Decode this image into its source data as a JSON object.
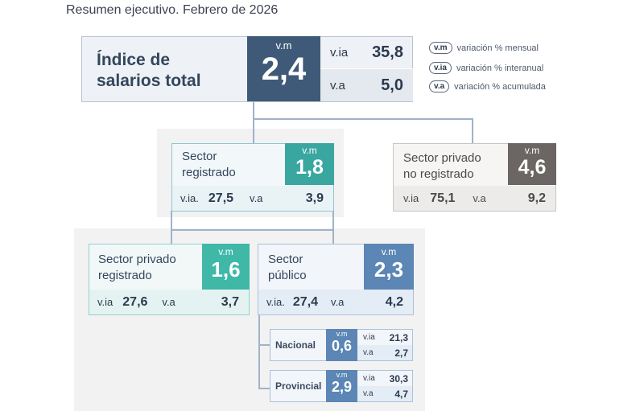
{
  "subtitle": "Resumen ejecutivo. Febrero de 2026",
  "legend": [
    {
      "abbr": "v.m",
      "text": "variación % mensual"
    },
    {
      "abbr": "v.ia",
      "text": "variación % interanual"
    },
    {
      "abbr": "v.a",
      "text": "variación % acumulada"
    }
  ],
  "total": {
    "name_line1": "Índice de",
    "name_line2": "salarios total",
    "vm_label": "v.m",
    "vm": "2,4",
    "via_label": "v.ia",
    "via": "35,8",
    "va_label": "v.a",
    "va": "5,0"
  },
  "registrado": {
    "name_line1": "Sector",
    "name_line2": "registrado",
    "vm_label": "v.m",
    "vm": "1,8",
    "via_label": "v.ia.",
    "via": "27,5",
    "va_label": "v.a",
    "va": "3,9"
  },
  "no_registrado": {
    "name_line1": "Sector privado",
    "name_line2": "no registrado",
    "vm_label": "v.m",
    "vm": "4,6",
    "via_label": "v.ia",
    "via": "75,1",
    "va_label": "v.a",
    "va": "9,2"
  },
  "privado_registrado": {
    "name_line1": "Sector privado",
    "name_line2": "registrado",
    "vm_label": "v.m",
    "vm": "1,6",
    "via_label": "v.ia",
    "via": "27,6",
    "va_label": "v.a",
    "va": "3,7"
  },
  "publico": {
    "name_line1": "Sector",
    "name_line2": "público",
    "vm_label": "v.m",
    "vm": "2,3",
    "via_label": "v.ia.",
    "via": "27,4",
    "va_label": "v.a",
    "va": "4,2"
  },
  "nacional": {
    "name": "Nacional",
    "vm_label": "v.m",
    "vm": "0,6",
    "via_label": "v.ia",
    "via": "21,3",
    "va_label": "v.a",
    "va": "2,7"
  },
  "provincial": {
    "name": "Provincial",
    "vm_label": "v.m",
    "vm": "2,9",
    "via_label": "v.ia",
    "via": "30,3",
    "va_label": "v.a",
    "va": "4,7"
  },
  "colors": {
    "total": "#3e5a78",
    "registrado": "#3aa6a0",
    "no_registrado": "#6b6663",
    "publico": "#5b86b5"
  }
}
